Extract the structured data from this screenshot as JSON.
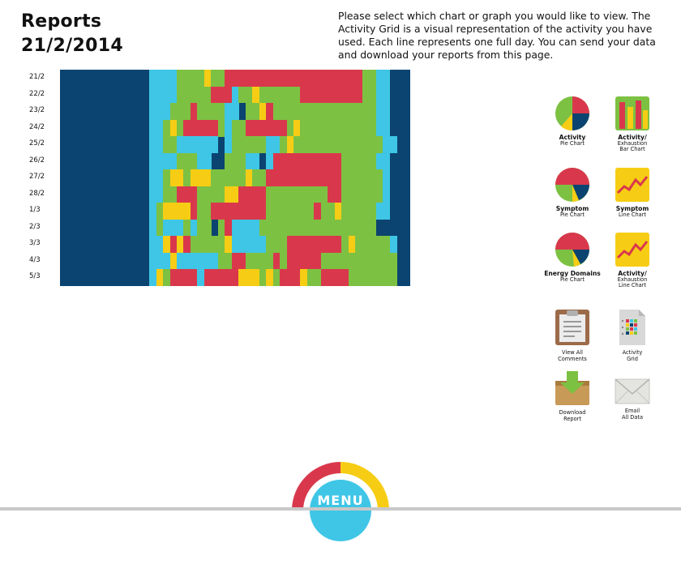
{
  "header": {
    "title": "Reports",
    "date": "21/2/2014"
  },
  "intro_text": "Please select which chart or graph you would like to view. The Activity Grid is a visual representation of the activity you have used. Each line represents one full day.  You can send your data and download your reports from this page.",
  "colors": {
    "navy": "#0b4470",
    "cyan": "#3fc6e6",
    "green": "#7dc142",
    "red": "#d9384c",
    "yellow": "#f6cd14"
  },
  "activity_grid": {
    "days": [
      "21/2",
      "22/2",
      "23/2",
      "24/2",
      "25/2",
      "26/2",
      "27/2",
      "28/2",
      "1/3",
      "2/3",
      "3/3",
      "4/3",
      "5/3"
    ],
    "rows": [
      "NNNNNNNNNNNNNCCCCGGGGYGGRRRRRRRRRRRRRRRRRRRRGGCCNNN",
      "NNNNNNNNNNNNNCCCCGGGGGRRRCGGYGGGGGGRRRRRRRRRGGCCNNN",
      "NNNNNNNNNNNNNCCCGGGRGGGGCCNGGYRGGGGGGGGGGGGGGGCCNNN",
      "NNNNNNNNNNNNNCCGYGRRRRRGCGGRRRRRRGYGGGGGGGGGGGCCNNN",
      "NNNNNNNNNNNNNCCGGCCCCCCNCGGGGGCCGYGGGGGGGGGGGGGCCNN",
      "NNNNNNNNNNNNNCCCCGGGCCNNGGGCCNCRRRRRRRRRRGGGGGCCNNN",
      "NNNNNNNNNNNNNCCGYYGYYYGGGGGYGGRRRRRRRRRRRGGGGGGCNNN",
      "NNNNNNNNNNNNNCCGGRRRGGGGYYRRRRGGGGGGGGGRRGGGGGGCNNN",
      "NNNNNNNNNNNNNCGYYYYRGGRRRRRRRRGGGGGGGRGGYGGGGGCCNNN",
      "NNNNNNNNNNNNNCGCCCGCGGNGRCCCCGGGGGGGGGGGGGGGGGNNNNN",
      "NNNNNNNNNNNNNCCYRYRGGGGGYCCCCCGGGRRRRRRRRGYGGGGGCNN",
      "NNNNNNNNNNNNNCCCYCCCCCCGGRRGGGGRGRRRRRGGGGGGGGGGGNN",
      "NNNNNNNNNNNNNCYGRRRRCRRRRRYYYGYGRRRYGGRRRRGGGGGGGNN"
    ]
  },
  "reports": [
    {
      "id": "activity-pie",
      "icon": "pie-chart-icon",
      "line1": "Activity",
      "line2": "Pie Chart"
    },
    {
      "id": "activity-exhaustion-bar",
      "icon": "bar-chart-icon",
      "line1": "Activity/",
      "line2": "Exhaustion",
      "line3": "Bar Chart"
    },
    {
      "id": "symptom-pie",
      "icon": "pie-chart-icon",
      "line1": "Symptom",
      "line2": "Pie Chart"
    },
    {
      "id": "symptom-line",
      "icon": "line-chart-icon",
      "line1": "Symptom",
      "line2": "Line Chart"
    },
    {
      "id": "energy-domains-pie",
      "icon": "pie-chart-icon",
      "line1": "Energy Domains",
      "line2": "Pie Chart"
    },
    {
      "id": "activity-exhaustion-line",
      "icon": "line-chart-icon",
      "line1": "Activity/",
      "line2": "Exhaustion",
      "line3": "Line Chart"
    },
    {
      "id": "view-comments",
      "icon": "clipboard-icon",
      "line1": "View All",
      "line2": "Comments"
    },
    {
      "id": "activity-grid",
      "icon": "grid-document-icon",
      "line1": "Activity",
      "line2": "Grid"
    },
    {
      "id": "download-report",
      "icon": "download-box-icon",
      "line1": "Download",
      "line2": "Report"
    },
    {
      "id": "email-data",
      "icon": "envelope-icon",
      "line1": "Email",
      "line2": "All Data"
    }
  ],
  "menu": {
    "label": "MENU"
  }
}
